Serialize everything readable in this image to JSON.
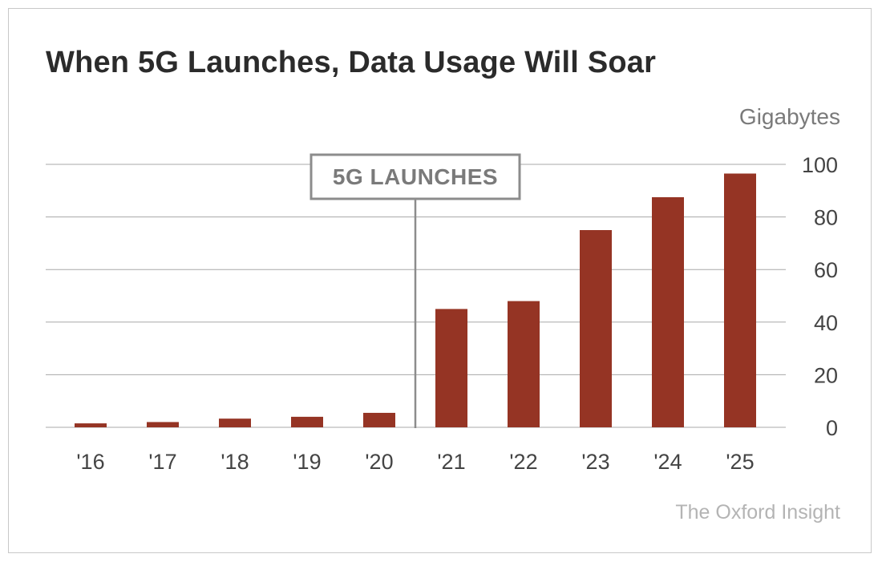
{
  "chart_data": {
    "type": "bar",
    "title": "When 5G Launches, Data Usage Will Soar",
    "ylabel": "Gigabytes",
    "xlabel": "",
    "categories": [
      "'16",
      "'17",
      "'18",
      "'19",
      "'20",
      "'21",
      "'22",
      "'23",
      "'24",
      "'25"
    ],
    "values": [
      1.5,
      2,
      3.3,
      4,
      5.5,
      45,
      48,
      75,
      87.5,
      96.5
    ],
    "ylim": [
      0,
      100
    ],
    "yticks": [
      "0",
      "20",
      "40",
      "60",
      "80",
      "100"
    ],
    "y_axis_position": "right",
    "grid": true,
    "bar_color": "#953424",
    "annotation": {
      "label": "5G LAUNCHES",
      "between": [
        "'20",
        "'21"
      ]
    },
    "source": "The Oxford Insight"
  }
}
